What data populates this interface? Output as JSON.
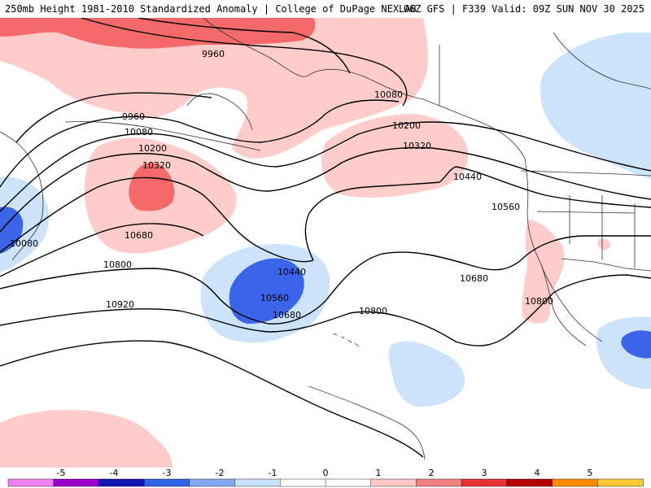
{
  "header": {
    "title_left": "250mb Height 1981-2010 Standardized Anomaly | College of DuPage NEXLAB",
    "title_right": "06Z GFS | F339 Valid: 09Z SUN NOV 30 2025"
  },
  "contour_labels": [
    "9960",
    "9960",
    "10080",
    "10080",
    "10080",
    "10200",
    "10200",
    "10320",
    "10320",
    "10440",
    "10440",
    "10560",
    "10560",
    "10680",
    "10680",
    "10680",
    "10800",
    "10800",
    "10800",
    "10920"
  ],
  "colorbar": {
    "ticks": [
      "-5",
      "-4",
      "-3",
      "-2",
      "-1",
      "0",
      "1",
      "2",
      "3",
      "4",
      "5"
    ],
    "colors": [
      "#ee82ee",
      "#9b00c8",
      "#1414b4",
      "#3264e6",
      "#82aaf0",
      "#c8e0fa",
      "#ffffff",
      "#ffffff",
      "#ffc8c8",
      "#f08080",
      "#e63232",
      "#b40000",
      "#ff8c00",
      "#ffc832"
    ]
  },
  "anomaly_colors": {
    "neg1": "#cce3fa",
    "neg2": "#3c64e8",
    "pos1": "#ffcccc",
    "pos2": "#f06060"
  }
}
